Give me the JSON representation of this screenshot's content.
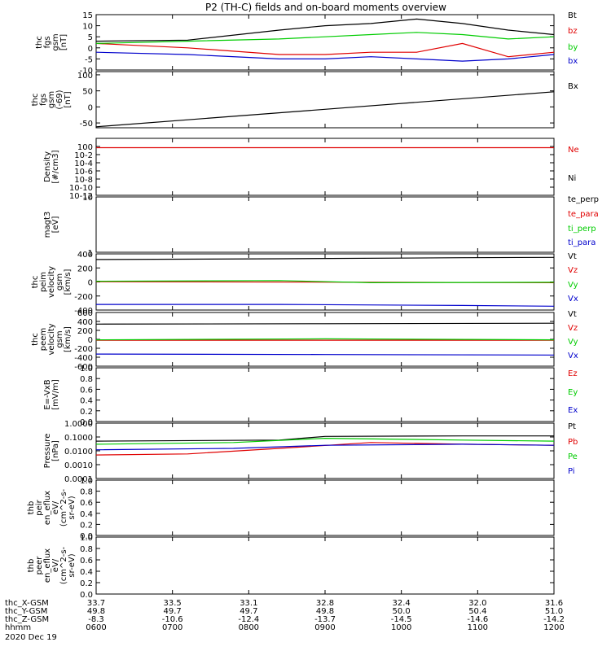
{
  "title": "P2 (TH-C) fields and on-board moments overview",
  "colors": {
    "black": "#000000",
    "red": "#e00000",
    "green": "#00cc00",
    "blue": "#0000cc",
    "bg": "#ffffff"
  },
  "chart_data": [
    {
      "type": "line",
      "ylabel": [
        "thc",
        "fgs",
        "gsm",
        "[nT]"
      ],
      "ylim": [
        -10,
        15
      ],
      "yticks": [
        -10,
        -5,
        0,
        5,
        10,
        15
      ],
      "tick_labels": [
        "-10",
        "-5",
        "0",
        "5",
        "10",
        "15"
      ],
      "legend": [
        {
          "name": "Bt",
          "color": "black"
        },
        {
          "name": "bz",
          "color": "red"
        },
        {
          "name": "by",
          "color": "green"
        },
        {
          "name": "bx",
          "color": "blue"
        }
      ],
      "series": [
        {
          "name": "Bt",
          "color": "black",
          "x": [
            0,
            0.2,
            0.4,
            0.5,
            0.6,
            0.7,
            0.8,
            0.9,
            1.0
          ],
          "y": [
            3,
            3.5,
            8,
            10,
            11,
            13,
            11,
            8,
            6
          ]
        },
        {
          "name": "bz",
          "color": "red",
          "x": [
            0,
            0.2,
            0.4,
            0.5,
            0.6,
            0.7,
            0.8,
            0.9,
            1.0
          ],
          "y": [
            2,
            0,
            -3,
            -3,
            -2,
            -2,
            2,
            -4,
            -2
          ]
        },
        {
          "name": "by",
          "color": "green",
          "x": [
            0,
            0.2,
            0.4,
            0.5,
            0.6,
            0.7,
            0.8,
            0.9,
            1.0
          ],
          "y": [
            2,
            3,
            4,
            5,
            6,
            7,
            6,
            4,
            5
          ]
        },
        {
          "name": "bx",
          "color": "blue",
          "x": [
            0,
            0.2,
            0.4,
            0.5,
            0.6,
            0.7,
            0.8,
            0.9,
            1.0
          ],
          "y": [
            -2,
            -3,
            -5,
            -5,
            -4,
            -5,
            -6,
            -5,
            -3
          ]
        }
      ]
    },
    {
      "type": "line",
      "ylabel": [
        "thc",
        "fgs",
        "gsm",
        "(-69)",
        "[nT]"
      ],
      "ylim": [
        -65,
        110
      ],
      "yticks": [
        -50,
        0,
        50,
        100
      ],
      "tick_labels": [
        "-50",
        "0",
        "50",
        "100"
      ],
      "legend": [
        {
          "name": "Bx",
          "color": "black"
        }
      ],
      "series": [
        {
          "name": "Bx",
          "color": "black",
          "x": [
            0,
            1.0
          ],
          "y": [
            -62,
            47
          ]
        }
      ]
    },
    {
      "type": "line",
      "log": true,
      "ylabel": [
        "Density",
        "[#/cm3]"
      ],
      "ylim": [
        1e-12,
        100
      ],
      "yticks": [
        1e-12,
        1e-10,
        1e-08,
        1e-06,
        0.0001,
        0.01,
        1
      ],
      "tick_labels": [
        "10-12",
        "10-10",
        "10-8",
        "10-6",
        "10-4",
        "10-2",
        "100"
      ],
      "legend": [
        {
          "name": "Ne",
          "color": "red"
        },
        {
          "name": "Ni",
          "color": "black"
        }
      ],
      "series": [
        {
          "name": "Ne",
          "color": "red",
          "x": [
            0,
            1.0
          ],
          "y": [
            0.5,
            0.5
          ]
        }
      ]
    },
    {
      "type": "line",
      "log": true,
      "ylabel": [
        "magt3",
        "[eV]"
      ],
      "ylim": [
        1,
        10
      ],
      "yticks": [
        1,
        10
      ],
      "tick_labels": [
        "1",
        "10"
      ],
      "legend": [
        {
          "name": "te_perp",
          "color": "black"
        },
        {
          "name": "te_para",
          "color": "red"
        },
        {
          "name": "ti_perp",
          "color": "green"
        },
        {
          "name": "ti_para",
          "color": "blue"
        }
      ],
      "series": []
    },
    {
      "type": "line",
      "ylabel": [
        "thc",
        "peim",
        "velocity",
        "gsm",
        "[km/s]"
      ],
      "ylim": [
        -400,
        400
      ],
      "yticks": [
        -400,
        -200,
        0,
        200,
        400
      ],
      "tick_labels": [
        "-400",
        "-200",
        "0",
        "200",
        "400"
      ],
      "legend": [
        {
          "name": "Vt",
          "color": "black"
        },
        {
          "name": "Vz",
          "color": "red"
        },
        {
          "name": "Vy",
          "color": "green"
        },
        {
          "name": "Vx",
          "color": "blue"
        }
      ],
      "series": [
        {
          "name": "Vt",
          "color": "black",
          "x": [
            0,
            0.4,
            0.8,
            1.0
          ],
          "y": [
            320,
            330,
            345,
            350
          ]
        },
        {
          "name": "Vz",
          "color": "red",
          "x": [
            0,
            1.0
          ],
          "y": [
            5,
            -10
          ]
        },
        {
          "name": "Vy",
          "color": "green",
          "x": [
            0,
            0.4,
            0.6,
            1.0
          ],
          "y": [
            10,
            20,
            -10,
            -5
          ]
        },
        {
          "name": "Vx",
          "color": "blue",
          "x": [
            0,
            0.4,
            0.8,
            1.0
          ],
          "y": [
            -320,
            -320,
            -335,
            -345
          ]
        }
      ]
    },
    {
      "type": "line",
      "ylabel": [
        "thc",
        "peem",
        "velocity",
        "gsm",
        "[km/s]"
      ],
      "ylim": [
        -600,
        600
      ],
      "yticks": [
        -600,
        -400,
        -200,
        0,
        200,
        400,
        600
      ],
      "tick_labels": [
        "-600",
        "-400",
        "-200",
        "0",
        "200",
        "400",
        "600"
      ],
      "legend": [
        {
          "name": "Vt",
          "color": "black"
        },
        {
          "name": "Vz",
          "color": "red"
        },
        {
          "name": "Vy",
          "color": "green"
        },
        {
          "name": "Vx",
          "color": "blue"
        }
      ],
      "series": [
        {
          "name": "Vt",
          "color": "black",
          "x": [
            0,
            0.5,
            1.0
          ],
          "y": [
            340,
            350,
            360
          ]
        },
        {
          "name": "Vz",
          "color": "red",
          "x": [
            0,
            1.0
          ],
          "y": [
            -20,
            -20
          ]
        },
        {
          "name": "Vy",
          "color": "green",
          "x": [
            0,
            0.5,
            1.0
          ],
          "y": [
            -10,
            10,
            -10
          ]
        },
        {
          "name": "Vx",
          "color": "blue",
          "x": [
            0,
            0.5,
            1.0
          ],
          "y": [
            -330,
            -340,
            -350
          ]
        }
      ]
    },
    {
      "type": "line",
      "ylabel": [
        "E=-VxB",
        "[mV/m]"
      ],
      "ylim": [
        0,
        1
      ],
      "yticks": [
        0,
        0.2,
        0.4,
        0.6,
        0.8,
        1.0
      ],
      "tick_labels": [
        "0.0",
        "0.2",
        "0.4",
        "0.6",
        "0.8",
        "1.0"
      ],
      "legend": [
        {
          "name": "Ez",
          "color": "red"
        },
        {
          "name": "Ey",
          "color": "green"
        },
        {
          "name": "Ex",
          "color": "blue"
        }
      ],
      "series": []
    },
    {
      "type": "line",
      "log": true,
      "ylabel": [
        "Pressure",
        "[nPa]"
      ],
      "ylim": [
        0.0001,
        1
      ],
      "yticks": [
        0.0001,
        0.001,
        0.01,
        0.1,
        1
      ],
      "tick_labels": [
        "0.0001",
        "0.0010",
        "0.0100",
        "0.1000",
        "1.0000"
      ],
      "legend": [
        {
          "name": "Pt",
          "color": "black"
        },
        {
          "name": "Pb",
          "color": "red"
        },
        {
          "name": "Pe",
          "color": "green"
        },
        {
          "name": "Pi",
          "color": "blue"
        }
      ],
      "series": [
        {
          "name": "Pt",
          "color": "black",
          "x": [
            0,
            0.4,
            0.5,
            0.8,
            1.0
          ],
          "y": [
            0.05,
            0.06,
            0.11,
            0.12,
            0.12
          ]
        },
        {
          "name": "Pb",
          "color": "red",
          "x": [
            0,
            0.2,
            0.4,
            0.6,
            0.8,
            1.0
          ],
          "y": [
            0.005,
            0.006,
            0.015,
            0.04,
            0.03,
            0.025
          ]
        },
        {
          "name": "Pe",
          "color": "green",
          "x": [
            0,
            0.3,
            0.5,
            0.8,
            1.0
          ],
          "y": [
            0.03,
            0.04,
            0.08,
            0.06,
            0.05
          ]
        },
        {
          "name": "Pi",
          "color": "blue",
          "x": [
            0,
            0.3,
            0.5,
            0.8,
            1.0
          ],
          "y": [
            0.012,
            0.015,
            0.025,
            0.03,
            0.025
          ]
        }
      ]
    },
    {
      "type": "line",
      "ylabel": [
        "thb",
        "peir",
        "en_eflux",
        "eV/",
        "(cm^2-s-",
        "sr-eV)"
      ],
      "ylim": [
        0,
        1
      ],
      "yticks": [
        0,
        0.2,
        0.4,
        0.6,
        0.8,
        1.0
      ],
      "tick_labels": [
        "0.0",
        "0.2",
        "0.4",
        "0.6",
        "0.8",
        "1.0"
      ],
      "legend": [],
      "series": []
    },
    {
      "type": "line",
      "ylabel": [
        "thb",
        "peer",
        "en_eflux",
        "eV/",
        "(cm^2-s-",
        "sr-eV)"
      ],
      "ylim": [
        0,
        1
      ],
      "yticks": [
        0,
        0.2,
        0.4,
        0.6,
        0.8,
        1.0
      ],
      "tick_labels": [
        "0.0",
        "0.2",
        "0.4",
        "0.6",
        "0.8",
        "1.0"
      ],
      "legend": [],
      "series": []
    }
  ],
  "xaxis": {
    "row_labels": [
      "thc_X-GSM",
      "thc_Y-GSM",
      "thc_Z-GSM",
      "hhmm",
      "2020 Dec 19"
    ],
    "x_gsm": [
      "33.7",
      "33.5",
      "33.1",
      "32.8",
      "32.4",
      "32.0",
      "31.6"
    ],
    "y_gsm": [
      "49.8",
      "49.7",
      "49.7",
      "49.8",
      "50.0",
      "50.4",
      "51.0"
    ],
    "z_gsm": [
      "-8.3",
      "-10.6",
      "-12.4",
      "-13.7",
      "-14.5",
      "-14.6",
      "-14.2"
    ],
    "hhmm": [
      "0600",
      "0700",
      "0800",
      "0900",
      "1000",
      "1100",
      "1200"
    ]
  }
}
